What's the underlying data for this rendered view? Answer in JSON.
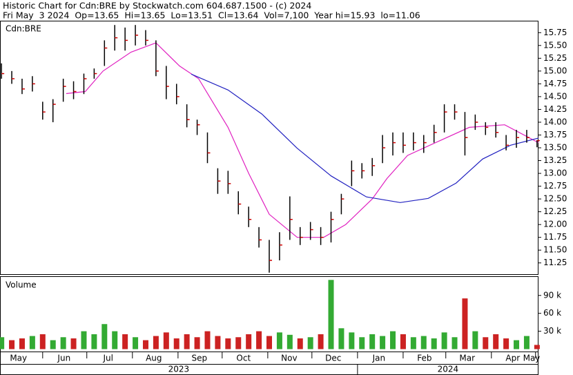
{
  "chart_data": [
    {
      "type": "ohlc",
      "title": "Historic Chart for Cdn:BRE by Stockwatch.com 604.687.1500 - (c) 2024",
      "subtitle": "Fri May  3 2024  Op=13.65  Hi=13.65  Lo=13.51  Cl=13.64  Vol=7,100  Year hi=15.93  lo=11.06",
      "label": "Cdn:BRE",
      "bar_color": "#000000",
      "close_color": "#cc0000",
      "x": [
        3,
        10,
        17,
        24,
        31,
        38,
        45,
        52,
        59,
        66,
        73,
        80,
        87,
        94,
        101,
        108,
        115,
        122,
        129,
        136,
        143,
        150,
        157,
        164,
        171,
        178,
        185,
        192,
        199,
        206,
        213,
        220,
        227,
        234,
        241,
        248,
        255,
        262,
        269,
        276,
        283,
        290,
        297,
        304,
        311,
        318,
        325,
        332,
        339,
        346,
        353,
        360,
        367
      ],
      "high": [
        15.15,
        15.0,
        14.85,
        14.9,
        14.4,
        14.45,
        14.85,
        14.8,
        14.95,
        15.05,
        15.6,
        15.9,
        15.85,
        15.9,
        15.8,
        15.6,
        15.1,
        14.75,
        14.35,
        14.05,
        13.8,
        13.1,
        13.05,
        12.65,
        12.35,
        11.95,
        11.7,
        11.85,
        12.55,
        11.95,
        12.05,
        11.95,
        12.25,
        12.6,
        13.25,
        13.2,
        13.3,
        13.75,
        13.8,
        13.8,
        13.8,
        13.75,
        13.95,
        14.35,
        14.35,
        14.2,
        14.15,
        14.0,
        14.0,
        13.75,
        13.85,
        13.85,
        13.65
      ],
      "low": [
        14.85,
        14.75,
        14.55,
        14.6,
        14.05,
        14.0,
        14.4,
        14.45,
        14.55,
        14.85,
        15.1,
        15.4,
        15.4,
        15.5,
        15.5,
        14.9,
        14.45,
        14.35,
        13.9,
        13.75,
        13.2,
        12.6,
        12.6,
        12.2,
        11.95,
        11.55,
        11.06,
        11.3,
        11.7,
        11.6,
        11.7,
        11.6,
        11.65,
        12.2,
        12.75,
        12.9,
        12.95,
        13.2,
        13.35,
        13.4,
        13.45,
        13.4,
        13.6,
        13.8,
        14.05,
        13.35,
        13.85,
        13.75,
        13.7,
        13.45,
        13.5,
        13.6,
        13.51
      ],
      "close": [
        14.95,
        14.85,
        14.65,
        14.75,
        14.2,
        14.35,
        14.7,
        14.6,
        14.85,
        14.95,
        15.45,
        15.65,
        15.6,
        15.7,
        15.6,
        15.0,
        14.7,
        14.5,
        14.05,
        13.95,
        13.4,
        12.85,
        12.8,
        12.4,
        12.1,
        11.7,
        11.3,
        11.6,
        12.1,
        11.75,
        11.9,
        11.75,
        12.1,
        12.5,
        13.05,
        13.05,
        13.15,
        13.5,
        13.6,
        13.55,
        13.6,
        13.6,
        13.8,
        14.2,
        14.2,
        13.7,
        14.0,
        13.9,
        13.8,
        13.55,
        13.7,
        13.7,
        13.64
      ],
      "moving_averages": [
        {
          "color": "#e020c0",
          "x": [
            47,
            60,
            72,
            91,
            108,
            124,
            137,
            157,
            171,
            185,
            204,
            222,
            237,
            255,
            265,
            279,
            298,
            321,
            345,
            368
          ],
          "values": [
            14.56,
            14.6,
            15.0,
            15.37,
            15.55,
            15.1,
            14.85,
            13.9,
            13.0,
            12.2,
            11.75,
            11.75,
            12.0,
            12.5,
            12.9,
            13.35,
            13.6,
            13.9,
            13.95,
            13.6
          ]
        },
        {
          "color": "#2020c0",
          "x": [
            132,
            157,
            180,
            204,
            227,
            251,
            274,
            293,
            312,
            330,
            349,
            368
          ],
          "values": [
            14.94,
            14.63,
            14.16,
            13.49,
            12.95,
            12.54,
            12.43,
            12.51,
            12.81,
            13.28,
            13.55,
            13.69
          ]
        }
      ],
      "xlim": [
        2,
        368
      ],
      "ylim": [
        11.03,
        15.97
      ],
      "yticks": [
        15.75,
        {
          "value": 15.5,
          "label": "15.50"
        },
        15.25,
        {
          "value": 15,
          "label": "15.00"
        },
        14.75,
        {
          "value": 14.5,
          "label": "14.50"
        },
        14.25,
        {
          "value": 14,
          "label": "14.00"
        },
        13.75,
        {
          "value": 13.5,
          "label": "13.50"
        },
        13.25,
        {
          "value": 13,
          "label": "13.00"
        },
        12.75,
        {
          "value": 12.5,
          "label": "12.50"
        },
        12.25,
        {
          "value": 12,
          "label": "12.00"
        },
        11.75,
        {
          "value": 11.5,
          "label": "11.50"
        },
        11.25
      ],
      "xticks": [
        {
          "value": 0,
          "label": "May"
        },
        {
          "value": 31,
          "label": "Jun"
        },
        {
          "value": 61,
          "label": "Jul"
        },
        {
          "value": 92,
          "label": "Aug"
        },
        {
          "value": 123,
          "label": "Sep"
        },
        {
          "value": 153,
          "label": "Oct"
        },
        {
          "value": 184,
          "label": "Nov"
        },
        {
          "value": 214,
          "label": "Dec"
        },
        {
          "value": 245,
          "label": "Jan"
        },
        {
          "value": 276,
          "label": "Feb"
        },
        {
          "value": 305,
          "label": "Mar"
        },
        {
          "value": 336,
          "label": "Apr"
        },
        {
          "value": 366,
          "label": "May"
        }
      ],
      "year_labels": [
        "2023",
        "2024"
      ]
    },
    {
      "type": "bar",
      "label": "Volume",
      "up_color": "#33aa33",
      "down_color": "#cc2222",
      "x": [
        3,
        10,
        17,
        24,
        31,
        38,
        45,
        52,
        59,
        66,
        73,
        80,
        87,
        94,
        101,
        108,
        115,
        122,
        129,
        136,
        143,
        150,
        157,
        164,
        171,
        178,
        185,
        192,
        199,
        206,
        213,
        220,
        227,
        234,
        241,
        248,
        255,
        262,
        269,
        276,
        283,
        290,
        297,
        304,
        311,
        318,
        325,
        332,
        339,
        346,
        353,
        360,
        367
      ],
      "values": [
        20000,
        15000,
        18000,
        22000,
        25000,
        15000,
        20000,
        18000,
        30000,
        25000,
        42000,
        30000,
        25000,
        20000,
        15000,
        22000,
        28000,
        18000,
        25000,
        20000,
        30000,
        22000,
        18000,
        20000,
        25000,
        30000,
        22000,
        28000,
        24000,
        18000,
        20000,
        25000,
        116000,
        35000,
        28000,
        20000,
        25000,
        22000,
        30000,
        25000,
        20000,
        22000,
        18000,
        28000,
        20000,
        85000,
        30000,
        20000,
        25000,
        18000,
        15000,
        22000,
        7100
      ],
      "ylim": [
        -4000,
        121000
      ],
      "yticks": [
        {
          "value": 30000,
          "label": "30 k"
        },
        {
          "value": 60000,
          "label": "60 k"
        },
        {
          "value": 90000,
          "label": "90 k"
        }
      ]
    }
  ]
}
